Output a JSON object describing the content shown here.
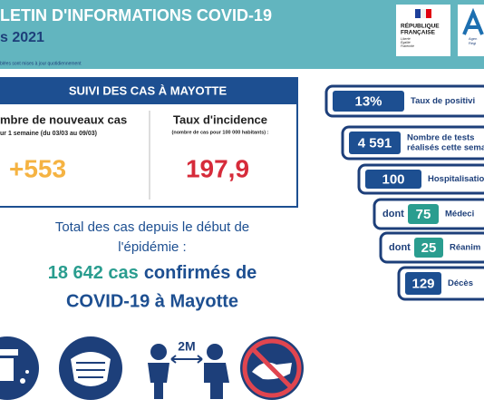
{
  "header": {
    "title": "LETIN D'INFORMATIONS COVID-19",
    "subtitle": "s 2021",
    "note": "blées sont mises à jour quotidiennement",
    "logo_rf": {
      "line1": "RÉPUBLIQUE",
      "line2": "FRANÇAISE",
      "motto": [
        "Liberté",
        "Égalité",
        "Fraternité"
      ]
    },
    "logo_ars": [
      "Agen",
      "Régi"
    ]
  },
  "suivi": {
    "title": "SUIVI DES CAS À MAYOTTE",
    "new_cases": {
      "label": "mbre de nouveaux cas",
      "period": "ur 1 semaine (du 03/03 au 09/03)",
      "value": "+553"
    },
    "incidence": {
      "label": "Taux d'incidence",
      "note": "(nombre de cas pour 100 000 habitants) :",
      "value": "197,9"
    }
  },
  "total": {
    "line1": "Total des cas depuis le début de",
    "line2": "l'épidémie :",
    "count": "18 642 cas",
    "rest": "confirmés de",
    "line4": "COVID-19 à Mayotte"
  },
  "icons": {
    "distance": "2M"
  },
  "indicators": [
    {
      "value": "13%",
      "label": [
        "Taux de positivi"
      ]
    },
    {
      "value": "4 591",
      "label": [
        "Nombre de tests",
        "réalisés cette semai"
      ]
    },
    {
      "value": "100",
      "label": [
        "Hospitalisation"
      ]
    },
    {
      "prefix": "dont",
      "value": "75",
      "label": [
        "Médeci"
      ]
    },
    {
      "prefix": "dont",
      "value": "25",
      "label": [
        "Réanim"
      ]
    },
    {
      "value": "129",
      "label": [
        "Décès"
      ]
    }
  ]
}
